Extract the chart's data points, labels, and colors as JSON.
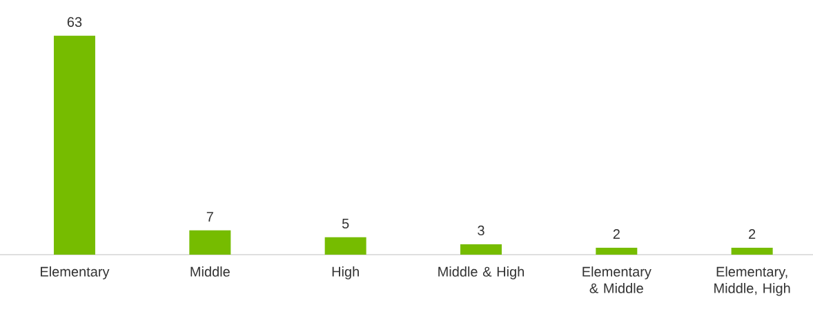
{
  "chart_data": {
    "type": "bar",
    "categories": [
      "Elementary",
      "Middle",
      "High",
      "Middle & High",
      "Elementary & Middle",
      "Elementary, Middle, High"
    ],
    "values": [
      63,
      7,
      5,
      3,
      2,
      2
    ],
    "color": "#76bc00",
    "data_labels": true
  }
}
